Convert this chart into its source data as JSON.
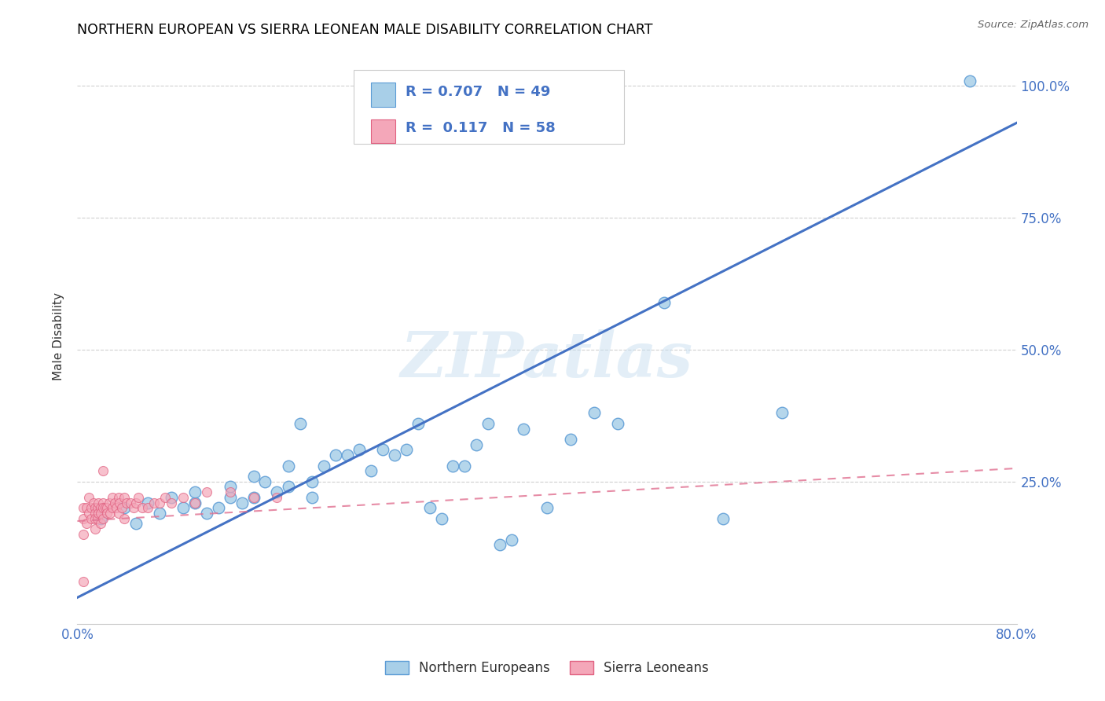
{
  "title": "NORTHERN EUROPEAN VS SIERRA LEONEAN MALE DISABILITY CORRELATION CHART",
  "source": "Source: ZipAtlas.com",
  "ylabel": "Male Disability",
  "xlim": [
    0.0,
    0.8
  ],
  "ylim": [
    -0.02,
    1.07
  ],
  "ytick_positions": [
    0.0,
    0.25,
    0.5,
    0.75,
    1.0
  ],
  "ytick_labels": [
    "",
    "25.0%",
    "50.0%",
    "75.0%",
    "100.0%"
  ],
  "blue_color": "#a8cfe8",
  "blue_edge_color": "#5b9bd5",
  "blue_line_color": "#4472c4",
  "pink_color": "#f4a7b9",
  "pink_edge_color": "#e06080",
  "pink_line_color": "#e07090",
  "watermark": "ZIPatlas",
  "legend_R1": "0.707",
  "legend_N1": "49",
  "legend_R2": "0.117",
  "legend_N2": "58",
  "blue_scatter_x": [
    0.02,
    0.04,
    0.05,
    0.06,
    0.07,
    0.08,
    0.09,
    0.1,
    0.1,
    0.11,
    0.12,
    0.13,
    0.13,
    0.14,
    0.15,
    0.15,
    0.16,
    0.17,
    0.18,
    0.18,
    0.19,
    0.2,
    0.2,
    0.21,
    0.22,
    0.23,
    0.24,
    0.25,
    0.26,
    0.27,
    0.28,
    0.29,
    0.3,
    0.31,
    0.32,
    0.33,
    0.34,
    0.35,
    0.36,
    0.37,
    0.38,
    0.4,
    0.42,
    0.44,
    0.46,
    0.5,
    0.55,
    0.6,
    0.76
  ],
  "blue_scatter_y": [
    0.18,
    0.2,
    0.17,
    0.21,
    0.19,
    0.22,
    0.2,
    0.21,
    0.23,
    0.19,
    0.2,
    0.22,
    0.24,
    0.21,
    0.26,
    0.22,
    0.25,
    0.23,
    0.28,
    0.24,
    0.36,
    0.22,
    0.25,
    0.28,
    0.3,
    0.3,
    0.31,
    0.27,
    0.31,
    0.3,
    0.31,
    0.36,
    0.2,
    0.18,
    0.28,
    0.28,
    0.32,
    0.36,
    0.13,
    0.14,
    0.35,
    0.2,
    0.33,
    0.38,
    0.36,
    0.59,
    0.18,
    0.38,
    1.01
  ],
  "pink_scatter_x": [
    0.005,
    0.005,
    0.005,
    0.008,
    0.008,
    0.01,
    0.01,
    0.012,
    0.012,
    0.014,
    0.015,
    0.015,
    0.015,
    0.015,
    0.017,
    0.017,
    0.018,
    0.018,
    0.02,
    0.02,
    0.02,
    0.022,
    0.022,
    0.022,
    0.024,
    0.025,
    0.025,
    0.027,
    0.028,
    0.03,
    0.03,
    0.032,
    0.033,
    0.035,
    0.035,
    0.036,
    0.038,
    0.04,
    0.04,
    0.042,
    0.045,
    0.048,
    0.05,
    0.052,
    0.055,
    0.06,
    0.065,
    0.07,
    0.075,
    0.08,
    0.09,
    0.1,
    0.11,
    0.13,
    0.15,
    0.17,
    0.022,
    0.005
  ],
  "pink_scatter_y": [
    0.18,
    0.2,
    0.15,
    0.2,
    0.17,
    0.19,
    0.22,
    0.2,
    0.18,
    0.21,
    0.2,
    0.19,
    0.18,
    0.16,
    0.2,
    0.18,
    0.21,
    0.19,
    0.2,
    0.19,
    0.17,
    0.21,
    0.2,
    0.18,
    0.2,
    0.2,
    0.19,
    0.21,
    0.19,
    0.22,
    0.2,
    0.21,
    0.2,
    0.22,
    0.19,
    0.21,
    0.2,
    0.22,
    0.18,
    0.21,
    0.21,
    0.2,
    0.21,
    0.22,
    0.2,
    0.2,
    0.21,
    0.21,
    0.22,
    0.21,
    0.22,
    0.21,
    0.23,
    0.23,
    0.22,
    0.22,
    0.27,
    0.06
  ]
}
